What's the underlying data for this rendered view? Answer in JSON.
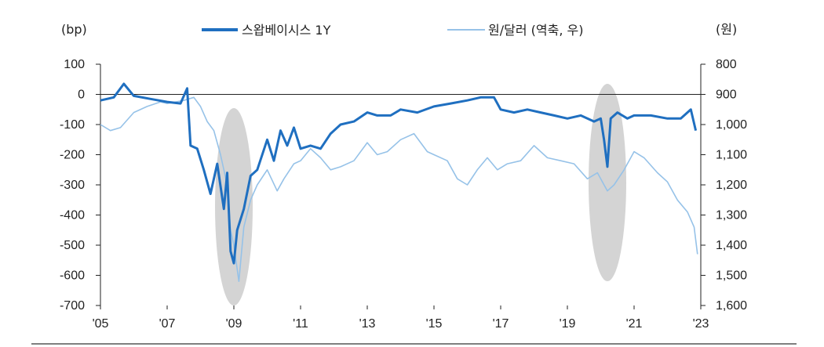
{
  "chart_data": {
    "type": "line",
    "left_unit": "(bp)",
    "right_unit": "(원)",
    "x_ticks": [
      "'05",
      "'07",
      "'09",
      "'11",
      "'13",
      "'15",
      "'17",
      "'19",
      "'21",
      "'23"
    ],
    "x_range": [
      2005,
      2023
    ],
    "y_left": {
      "ticks": [
        "100",
        "0",
        "-100",
        "-200",
        "-300",
        "-400",
        "-500",
        "-600",
        "-700"
      ],
      "range": [
        -700,
        100
      ]
    },
    "y_right": {
      "ticks": [
        "800",
        "900",
        "1,000",
        "1,100",
        "1,200",
        "1,300",
        "1,400",
        "1,500",
        "1,600"
      ],
      "range": [
        800,
        1600
      ],
      "inverted": true
    },
    "series": [
      {
        "name": "스왑베이시스  1Y",
        "axis": "left",
        "color": "#1f6fc0",
        "x": [
          2005.0,
          2005.4,
          2005.7,
          2006.0,
          2006.5,
          2007.0,
          2007.4,
          2007.6,
          2007.7,
          2007.9,
          2008.1,
          2008.3,
          2008.5,
          2008.7,
          2008.8,
          2008.9,
          2009.0,
          2009.1,
          2009.3,
          2009.5,
          2009.7,
          2010.0,
          2010.2,
          2010.4,
          2010.6,
          2010.8,
          2011.0,
          2011.3,
          2011.6,
          2011.9,
          2012.2,
          2012.6,
          2013.0,
          2013.3,
          2013.7,
          2014.0,
          2014.5,
          2015.0,
          2015.5,
          2016.0,
          2016.4,
          2016.8,
          2017.0,
          2017.4,
          2017.8,
          2018.2,
          2018.6,
          2019.0,
          2019.4,
          2019.8,
          2020.0,
          2020.1,
          2020.2,
          2020.3,
          2020.5,
          2020.8,
          2021.0,
          2021.5,
          2022.0,
          2022.4,
          2022.7,
          2022.85
        ],
        "values": [
          -20,
          -10,
          35,
          -5,
          -15,
          -25,
          -30,
          20,
          -170,
          -180,
          -250,
          -330,
          -230,
          -380,
          -260,
          -520,
          -560,
          -450,
          -380,
          -270,
          -250,
          -150,
          -220,
          -120,
          -170,
          -110,
          -180,
          -170,
          -180,
          -130,
          -100,
          -90,
          -60,
          -70,
          -70,
          -50,
          -60,
          -40,
          -30,
          -20,
          -10,
          -10,
          -50,
          -60,
          -50,
          -60,
          -70,
          -80,
          -70,
          -90,
          -80,
          -150,
          -240,
          -80,
          -60,
          -80,
          -70,
          -70,
          -80,
          -80,
          -50,
          -120
        ]
      },
      {
        "name": "원/달러 (역축, 우)",
        "axis": "right",
        "color": "#96c2e8",
        "x": [
          2005.0,
          2005.3,
          2005.6,
          2006.0,
          2006.4,
          2006.8,
          2007.0,
          2007.5,
          2007.8,
          2008.0,
          2008.2,
          2008.4,
          2008.6,
          2008.8,
          2008.9,
          2009.0,
          2009.15,
          2009.3,
          2009.5,
          2009.7,
          2010.0,
          2010.3,
          2010.5,
          2010.8,
          2011.0,
          2011.3,
          2011.6,
          2011.9,
          2012.2,
          2012.6,
          2013.0,
          2013.3,
          2013.6,
          2014.0,
          2014.4,
          2014.8,
          2015.0,
          2015.4,
          2015.7,
          2016.0,
          2016.3,
          2016.6,
          2016.9,
          2017.2,
          2017.6,
          2018.0,
          2018.4,
          2018.8,
          2019.2,
          2019.6,
          2019.9,
          2020.1,
          2020.2,
          2020.4,
          2020.7,
          2021.0,
          2021.3,
          2021.7,
          2022.0,
          2022.3,
          2022.6,
          2022.8,
          2022.9
        ],
        "values": [
          1000,
          1020,
          1010,
          960,
          940,
          925,
          930,
          920,
          910,
          940,
          990,
          1020,
          1100,
          1200,
          1350,
          1400,
          1520,
          1340,
          1250,
          1200,
          1150,
          1220,
          1180,
          1130,
          1120,
          1080,
          1110,
          1150,
          1140,
          1120,
          1060,
          1100,
          1090,
          1050,
          1030,
          1090,
          1100,
          1120,
          1180,
          1200,
          1150,
          1110,
          1150,
          1130,
          1120,
          1070,
          1110,
          1120,
          1130,
          1180,
          1160,
          1200,
          1220,
          1200,
          1150,
          1090,
          1110,
          1160,
          1190,
          1250,
          1290,
          1340,
          1430
        ]
      }
    ],
    "annotations": [
      "highlight-2008-2009",
      "highlight-2020"
    ]
  }
}
